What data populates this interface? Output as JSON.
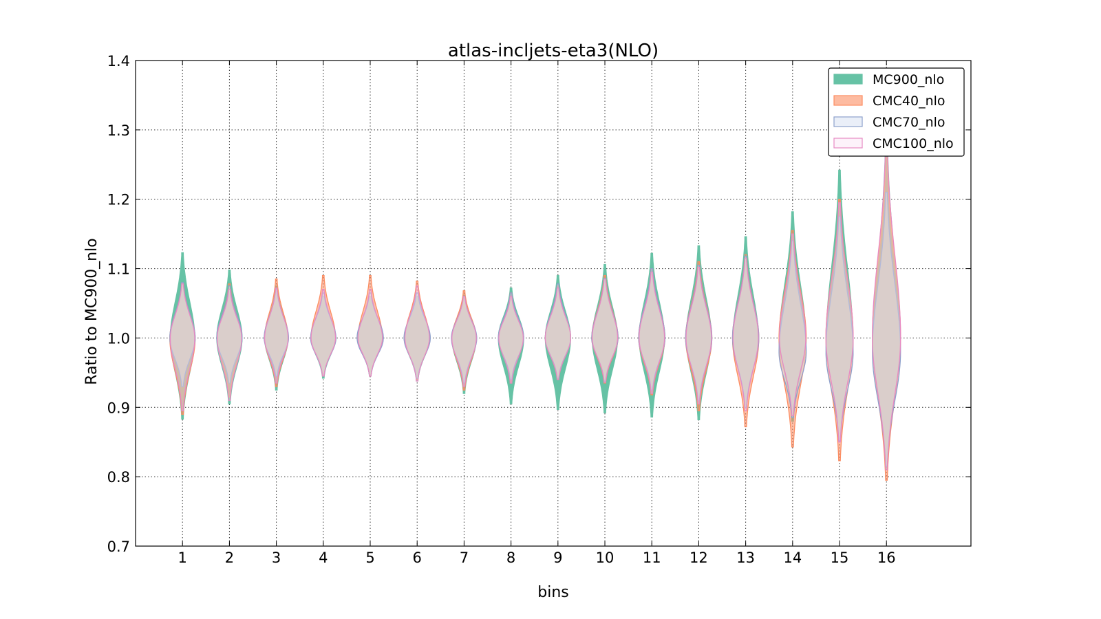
{
  "chart_data": {
    "type": "violin",
    "title": "atlas-incljets-eta3(NLO)",
    "xlabel": "bins",
    "ylabel": "Ratio to MC900_nlo",
    "ylim": [
      0.7,
      1.4
    ],
    "yticks": [
      "0.7",
      "0.8",
      "0.9",
      "1.0",
      "1.1",
      "1.2",
      "1.3",
      "1.4"
    ],
    "xlim": [
      0,
      17.8
    ],
    "categories": [
      "1",
      "2",
      "3",
      "4",
      "5",
      "6",
      "7",
      "8",
      "9",
      "10",
      "11",
      "12",
      "13",
      "14",
      "15",
      "16"
    ],
    "grid": true,
    "legend_position": "top-right",
    "series": [
      {
        "name": "MC900_nlo",
        "fill": "#66c2a5",
        "stroke": "#66c2a5",
        "fill_opacity": 1,
        "bins": [
          {
            "min": 0.883,
            "max": 1.123,
            "center": 1.0,
            "halfwidth": 0.26
          },
          {
            "min": 0.905,
            "max": 1.098,
            "center": 1.0,
            "halfwidth": 0.27
          },
          {
            "min": 0.925,
            "max": 1.075,
            "center": 1.0,
            "halfwidth": 0.25
          },
          {
            "min": 0.942,
            "max": 1.06,
            "center": 1.0,
            "halfwidth": 0.26
          },
          {
            "min": 0.945,
            "max": 1.06,
            "center": 1.0,
            "halfwidth": 0.27
          },
          {
            "min": 0.938,
            "max": 1.06,
            "center": 1.0,
            "halfwidth": 0.27
          },
          {
            "min": 0.92,
            "max": 1.062,
            "center": 1.0,
            "halfwidth": 0.26
          },
          {
            "min": 0.905,
            "max": 1.072,
            "center": 1.0,
            "halfwidth": 0.27
          },
          {
            "min": 0.897,
            "max": 1.09,
            "center": 1.0,
            "halfwidth": 0.27
          },
          {
            "min": 0.892,
            "max": 1.106,
            "center": 1.0,
            "halfwidth": 0.27
          },
          {
            "min": 0.886,
            "max": 1.122,
            "center": 1.0,
            "halfwidth": 0.27
          },
          {
            "min": 0.882,
            "max": 1.133,
            "center": 1.0,
            "halfwidth": 0.27
          },
          {
            "min": 0.9,
            "max": 1.146,
            "center": 1.0,
            "halfwidth": 0.27
          },
          {
            "min": 0.88,
            "max": 1.182,
            "center": 1.0,
            "halfwidth": 0.28
          },
          {
            "min": 0.852,
            "max": 1.242,
            "center": 1.0,
            "halfwidth": 0.28
          },
          {
            "min": 0.812,
            "max": 1.29,
            "center": 0.99,
            "halfwidth": 0.29
          }
        ]
      },
      {
        "name": "CMC40_nlo",
        "fill": "#fc8d62",
        "stroke": "#fc8d62",
        "fill_opacity": 0.55,
        "bins": [
          {
            "min": 0.89,
            "max": 1.08,
            "center": 1.0,
            "halfwidth": 0.27
          },
          {
            "min": 0.915,
            "max": 1.078,
            "center": 1.0,
            "halfwidth": 0.26
          },
          {
            "min": 0.93,
            "max": 1.085,
            "center": 1.0,
            "halfwidth": 0.25
          },
          {
            "min": 0.945,
            "max": 1.09,
            "center": 1.0,
            "halfwidth": 0.26
          },
          {
            "min": 0.945,
            "max": 1.09,
            "center": 1.0,
            "halfwidth": 0.26
          },
          {
            "min": 0.94,
            "max": 1.082,
            "center": 1.0,
            "halfwidth": 0.26
          },
          {
            "min": 0.925,
            "max": 1.068,
            "center": 1.0,
            "halfwidth": 0.26
          },
          {
            "min": 0.935,
            "max": 1.065,
            "center": 1.0,
            "halfwidth": 0.26
          },
          {
            "min": 0.94,
            "max": 1.075,
            "center": 1.0,
            "halfwidth": 0.27
          },
          {
            "min": 0.935,
            "max": 1.09,
            "center": 1.0,
            "halfwidth": 0.28
          },
          {
            "min": 0.918,
            "max": 1.1,
            "center": 1.0,
            "halfwidth": 0.28
          },
          {
            "min": 0.895,
            "max": 1.11,
            "center": 1.0,
            "halfwidth": 0.28
          },
          {
            "min": 0.872,
            "max": 1.12,
            "center": 1.0,
            "halfwidth": 0.28
          },
          {
            "min": 0.843,
            "max": 1.155,
            "center": 1.0,
            "halfwidth": 0.29
          },
          {
            "min": 0.823,
            "max": 1.2,
            "center": 1.0,
            "halfwidth": 0.29
          },
          {
            "min": 0.795,
            "max": 1.26,
            "center": 1.0,
            "halfwidth": 0.3
          }
        ]
      },
      {
        "name": "CMC70_nlo",
        "fill": "#dce4f4",
        "stroke": "#8da0cb",
        "fill_opacity": 0.45,
        "bins": [
          {
            "min": 0.93,
            "max": 1.08,
            "center": 1.0,
            "halfwidth": 0.27
          },
          {
            "min": 0.935,
            "max": 1.075,
            "center": 1.0,
            "halfwidth": 0.27
          },
          {
            "min": 0.945,
            "max": 1.07,
            "center": 1.0,
            "halfwidth": 0.26
          },
          {
            "min": 0.945,
            "max": 1.065,
            "center": 1.0,
            "halfwidth": 0.27
          },
          {
            "min": 0.945,
            "max": 1.065,
            "center": 1.0,
            "halfwidth": 0.28
          },
          {
            "min": 0.942,
            "max": 1.065,
            "center": 1.0,
            "halfwidth": 0.28
          },
          {
            "min": 0.935,
            "max": 1.06,
            "center": 1.0,
            "halfwidth": 0.27
          },
          {
            "min": 0.94,
            "max": 1.065,
            "center": 1.0,
            "halfwidth": 0.27
          },
          {
            "min": 0.942,
            "max": 1.078,
            "center": 1.0,
            "halfwidth": 0.27
          },
          {
            "min": 0.938,
            "max": 1.086,
            "center": 1.0,
            "halfwidth": 0.28
          },
          {
            "min": 0.925,
            "max": 1.1,
            "center": 1.0,
            "halfwidth": 0.28
          },
          {
            "min": 0.91,
            "max": 1.105,
            "center": 1.0,
            "halfwidth": 0.28
          },
          {
            "min": 0.9,
            "max": 1.118,
            "center": 1.0,
            "halfwidth": 0.28
          },
          {
            "min": 0.885,
            "max": 1.14,
            "center": 0.98,
            "halfwidth": 0.29
          },
          {
            "min": 0.852,
            "max": 1.175,
            "center": 0.98,
            "halfwidth": 0.29
          },
          {
            "min": 0.815,
            "max": 1.21,
            "center": 0.98,
            "halfwidth": 0.3
          }
        ]
      },
      {
        "name": "CMC100_nlo",
        "fill": "#fbe9f6",
        "stroke": "#e78ac3",
        "fill_opacity": 0.35,
        "bins": [
          {
            "min": 0.895,
            "max": 1.078,
            "center": 1.0,
            "halfwidth": 0.26
          },
          {
            "min": 0.91,
            "max": 1.07,
            "center": 1.0,
            "halfwidth": 0.26
          },
          {
            "min": 0.935,
            "max": 1.072,
            "center": 1.0,
            "halfwidth": 0.25
          },
          {
            "min": 0.945,
            "max": 1.07,
            "center": 1.0,
            "halfwidth": 0.26
          },
          {
            "min": 0.945,
            "max": 1.07,
            "center": 1.0,
            "halfwidth": 0.26
          },
          {
            "min": 0.938,
            "max": 1.075,
            "center": 1.0,
            "halfwidth": 0.26
          },
          {
            "min": 0.93,
            "max": 1.06,
            "center": 1.0,
            "halfwidth": 0.26
          },
          {
            "min": 0.935,
            "max": 1.06,
            "center": 1.0,
            "halfwidth": 0.26
          },
          {
            "min": 0.94,
            "max": 1.072,
            "center": 1.0,
            "halfwidth": 0.27
          },
          {
            "min": 0.936,
            "max": 1.085,
            "center": 1.0,
            "halfwidth": 0.27
          },
          {
            "min": 0.92,
            "max": 1.095,
            "center": 1.0,
            "halfwidth": 0.27
          },
          {
            "min": 0.905,
            "max": 1.102,
            "center": 1.0,
            "halfwidth": 0.27
          },
          {
            "min": 0.895,
            "max": 1.115,
            "center": 1.0,
            "halfwidth": 0.27
          },
          {
            "min": 0.888,
            "max": 1.15,
            "center": 1.0,
            "halfwidth": 0.28
          },
          {
            "min": 0.85,
            "max": 1.195,
            "center": 1.0,
            "halfwidth": 0.29
          },
          {
            "min": 0.81,
            "max": 1.28,
            "center": 1.0,
            "halfwidth": 0.3
          }
        ]
      }
    ]
  }
}
